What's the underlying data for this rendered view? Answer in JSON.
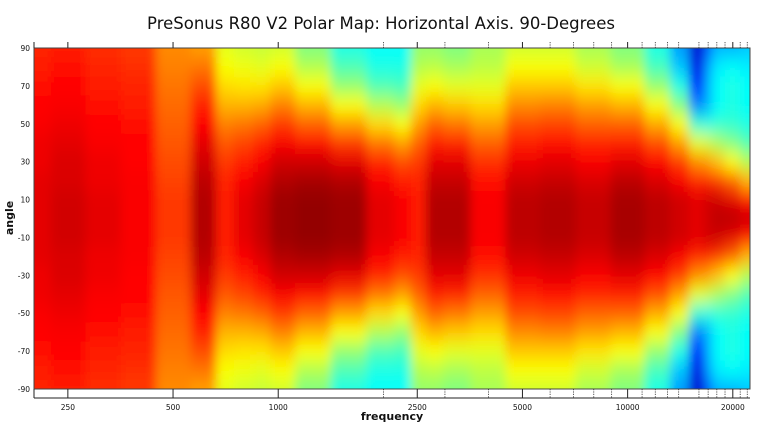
{
  "chart_data": {
    "type": "heatmap",
    "title": "PreSonus R80 V2 Polar Map: Horizontal Axis. 90-Degrees",
    "xlabel": "frequency",
    "ylabel": "angle",
    "x_scale": "log",
    "xlim": [
      200,
      22400
    ],
    "ylim": [
      -90,
      90
    ],
    "x_ticks": [
      250,
      500,
      1000,
      2500,
      5000,
      10000,
      20000
    ],
    "x_minor_ticks": [
      2000,
      3000,
      4000,
      6000,
      7000,
      8000,
      9000,
      11000,
      12000,
      13000,
      14000,
      16000,
      17000,
      18000,
      19000,
      21000,
      22000
    ],
    "y_ticks": [
      90,
      70,
      50,
      30,
      10,
      -10,
      -30,
      -50,
      -70,
      -90
    ],
    "colormap": "jet",
    "grid": false,
    "level_range": [
      0,
      100
    ],
    "angles": [
      90,
      80,
      70,
      60,
      50,
      40,
      30,
      20,
      10,
      0,
      -10,
      -20,
      -30,
      -40,
      -50,
      -60,
      -70,
      -80,
      -90
    ],
    "frequencies": [
      200,
      250,
      315,
      400,
      500,
      630,
      700,
      800,
      900,
      1000,
      1250,
      1600,
      2000,
      2300,
      2500,
      2800,
      3150,
      4000,
      5000,
      6300,
      8000,
      10000,
      12500,
      14000,
      16000,
      17000,
      18000,
      20000,
      22000
    ],
    "levels": [
      [
        84,
        85,
        86,
        87,
        88,
        89,
        89,
        90,
        90,
        90,
        90,
        90,
        89,
        89,
        88,
        87,
        86,
        85,
        84
      ],
      [
        85,
        86,
        87,
        88,
        89,
        90,
        91,
        91,
        92,
        92,
        92,
        91,
        91,
        90,
        89,
        88,
        87,
        86,
        85
      ],
      [
        83,
        84,
        85,
        86,
        87,
        88,
        89,
        89,
        90,
        90,
        90,
        89,
        89,
        88,
        87,
        86,
        85,
        84,
        83
      ],
      [
        82,
        83,
        84,
        85,
        86,
        87,
        87,
        88,
        88,
        88,
        88,
        88,
        87,
        87,
        86,
        85,
        84,
        83,
        82
      ],
      [
        74,
        75,
        76,
        77,
        78,
        79,
        80,
        81,
        82,
        82,
        82,
        81,
        80,
        79,
        78,
        77,
        76,
        75,
        74
      ],
      [
        72,
        76,
        80,
        84,
        87,
        90,
        92,
        94,
        95,
        95,
        95,
        94,
        92,
        90,
        87,
        84,
        80,
        76,
        72
      ],
      [
        60,
        62,
        66,
        70,
        75,
        79,
        82,
        84,
        85,
        85,
        85,
        84,
        82,
        79,
        75,
        70,
        66,
        62,
        60
      ],
      [
        58,
        61,
        65,
        70,
        76,
        81,
        85,
        88,
        90,
        90,
        90,
        88,
        85,
        81,
        76,
        70,
        65,
        61,
        58
      ],
      [
        57,
        60,
        65,
        71,
        78,
        84,
        88,
        91,
        93,
        93,
        93,
        91,
        88,
        84,
        78,
        71,
        65,
        60,
        57
      ],
      [
        58,
        62,
        68,
        75,
        82,
        88,
        92,
        95,
        97,
        97,
        97,
        95,
        92,
        88,
        82,
        75,
        68,
        62,
        58
      ],
      [
        50,
        55,
        62,
        70,
        78,
        86,
        92,
        96,
        98,
        98,
        98,
        96,
        92,
        86,
        78,
        70,
        62,
        55,
        50
      ],
      [
        40,
        45,
        52,
        62,
        72,
        82,
        90,
        95,
        97,
        97,
        97,
        95,
        90,
        82,
        72,
        62,
        52,
        45,
        40
      ],
      [
        38,
        40,
        45,
        55,
        66,
        76,
        84,
        88,
        90,
        90,
        90,
        88,
        84,
        76,
        66,
        55,
        45,
        40,
        38
      ],
      [
        38,
        40,
        44,
        52,
        62,
        72,
        80,
        85,
        88,
        88,
        88,
        85,
        80,
        72,
        62,
        52,
        44,
        40,
        38
      ],
      [
        52,
        55,
        60,
        66,
        72,
        78,
        82,
        84,
        85,
        85,
        85,
        84,
        82,
        78,
        72,
        66,
        60,
        55,
        52
      ],
      [
        52,
        56,
        62,
        70,
        78,
        85,
        90,
        93,
        95,
        95,
        95,
        93,
        90,
        85,
        78,
        70,
        62,
        56,
        52
      ],
      [
        50,
        54,
        60,
        68,
        76,
        84,
        90,
        93,
        95,
        95,
        95,
        93,
        90,
        84,
        76,
        68,
        60,
        54,
        50
      ],
      [
        54,
        56,
        60,
        66,
        72,
        78,
        83,
        86,
        88,
        88,
        88,
        86,
        83,
        78,
        72,
        66,
        60,
        56,
        54
      ],
      [
        58,
        62,
        68,
        74,
        80,
        85,
        89,
        92,
        94,
        94,
        94,
        92,
        89,
        85,
        80,
        74,
        68,
        62,
        58
      ],
      [
        58,
        62,
        68,
        75,
        81,
        86,
        90,
        93,
        95,
        95,
        95,
        93,
        90,
        86,
        81,
        75,
        68,
        62,
        58
      ],
      [
        54,
        58,
        65,
        72,
        78,
        84,
        88,
        91,
        93,
        93,
        93,
        91,
        88,
        84,
        78,
        72,
        65,
        58,
        54
      ],
      [
        50,
        54,
        62,
        70,
        78,
        85,
        90,
        94,
        96,
        96,
        96,
        94,
        90,
        85,
        78,
        70,
        62,
        54,
        50
      ],
      [
        40,
        44,
        52,
        62,
        71,
        80,
        87,
        91,
        94,
        94,
        94,
        91,
        87,
        80,
        71,
        62,
        52,
        44,
        40
      ],
      [
        28,
        32,
        40,
        50,
        62,
        72,
        82,
        88,
        92,
        92,
        92,
        88,
        82,
        72,
        62,
        50,
        40,
        32,
        28
      ],
      [
        8,
        10,
        15,
        25,
        42,
        60,
        74,
        84,
        90,
        90,
        90,
        84,
        74,
        60,
        42,
        25,
        15,
        10,
        8
      ],
      [
        22,
        28,
        30,
        30,
        40,
        58,
        72,
        84,
        92,
        92,
        92,
        84,
        72,
        58,
        40,
        30,
        30,
        28,
        22
      ],
      [
        30,
        36,
        38,
        38,
        42,
        54,
        68,
        82,
        92,
        94,
        92,
        82,
        68,
        54,
        42,
        38,
        38,
        36,
        30
      ],
      [
        30,
        38,
        40,
        40,
        42,
        50,
        62,
        78,
        90,
        94,
        90,
        78,
        62,
        50,
        42,
        40,
        40,
        38,
        30
      ],
      [
        32,
        36,
        38,
        38,
        40,
        45,
        55,
        70,
        86,
        92,
        86,
        70,
        55,
        45,
        40,
        38,
        38,
        36,
        32
      ]
    ]
  }
}
